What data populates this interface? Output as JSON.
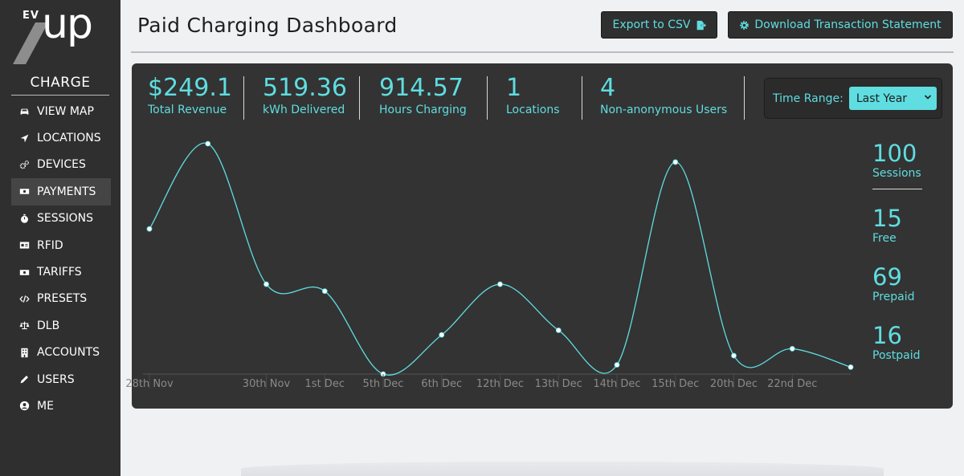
{
  "brand": {
    "logo_small": "EV",
    "logo_large": "up"
  },
  "sidebar": {
    "section": "CHARGE",
    "items": [
      {
        "label": "VIEW MAP",
        "icon": "car-icon"
      },
      {
        "label": "LOCATIONS",
        "icon": "location-arrow-icon"
      },
      {
        "label": "DEVICES",
        "icon": "cogs-icon"
      },
      {
        "label": "PAYMENTS",
        "icon": "money-bill-icon",
        "active": true
      },
      {
        "label": "SESSIONS",
        "icon": "stopwatch-icon"
      },
      {
        "label": "RFID",
        "icon": "id-card-icon"
      },
      {
        "label": "TARIFFS",
        "icon": "money-bill-icon"
      },
      {
        "label": "PRESETS",
        "icon": "code-icon"
      },
      {
        "label": "DLB",
        "icon": "balance-scale-icon"
      },
      {
        "label": "ACCOUNTS",
        "icon": "building-icon"
      },
      {
        "label": "USERS",
        "icon": "pen-icon"
      },
      {
        "label": "ME",
        "icon": "user-circle-icon"
      }
    ]
  },
  "header": {
    "title": "Paid Charging Dashboard",
    "export_label": "Export to CSV",
    "download_label": "Download Transaction Statement"
  },
  "stats": [
    {
      "value": "$249.1",
      "label": "Total Revenue"
    },
    {
      "value": "519.36",
      "label": "kWh Delivered"
    },
    {
      "value": "914.57",
      "label": "Hours Charging"
    },
    {
      "value": "1",
      "label": "Locations"
    },
    {
      "value": "4",
      "label": "Non-anonymous Users"
    }
  ],
  "time_range": {
    "label": "Time Range:",
    "selected": "Last Year"
  },
  "side_stats": [
    {
      "value": "100",
      "label": "Sessions"
    },
    {
      "value": "15",
      "label": "Free"
    },
    {
      "value": "69",
      "label": "Prepaid"
    },
    {
      "value": "16",
      "label": "Postpaid"
    }
  ],
  "colors": {
    "accent": "#5fdde0",
    "panel": "#333333",
    "sidebar": "#2f2f2f"
  },
  "chart_data": {
    "type": "line",
    "x": [
      "28th Nov",
      "",
      "30th Nov",
      "1st Dec",
      "5th Dec",
      "6th Dec",
      "12th Dec",
      "13th Dec",
      "14th Dec",
      "15th Dec",
      "20th Dec",
      "22nd Dec",
      ""
    ],
    "values": [
      63,
      100,
      39,
      36,
      0,
      17,
      39,
      19,
      4,
      92,
      8,
      11,
      3
    ],
    "ylim": [
      0,
      100
    ],
    "grid": false,
    "legend": "none"
  }
}
